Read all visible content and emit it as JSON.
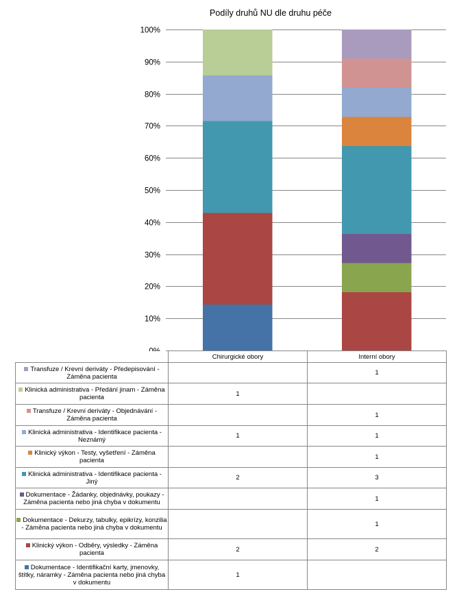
{
  "chart_data": {
    "type": "bar",
    "stacking": "percent",
    "title": "Podíly druhů NU dle druhu péče",
    "categories": [
      "Chirurgické obory",
      "Interní obory"
    ],
    "ylim": [
      0,
      100
    ],
    "y_ticks": [
      "0%",
      "10%",
      "20%",
      "30%",
      "40%",
      "50%",
      "60%",
      "70%",
      "80%",
      "90%",
      "100%"
    ],
    "grid": true,
    "legend_placement": "data-table",
    "series": [
      {
        "name": "Dokumentace - Identifikační karty, jmenovky, štítky, náramky - Záměna pacienta nebo jiná chyba v dokumentu",
        "values": [
          1,
          null
        ],
        "color": "#4572A7"
      },
      {
        "name": "Klinický výkon - Odběry, výsledky - Záměna pacienta",
        "values": [
          2,
          2
        ],
        "color": "#AA4643"
      },
      {
        "name": "Dokumentace - Dekurzy, tabulky, epikrízy, konzilia - Záměna pacienta nebo jiná chyba v dokumentu",
        "values": [
          null,
          1
        ],
        "color": "#89A54E"
      },
      {
        "name": "Dokumentace - Žádanky, objednávky, poukazy - Záměna pacienta nebo jiná chyba v dokumentu",
        "values": [
          null,
          1
        ],
        "color": "#71588F"
      },
      {
        "name": "Klinická administrativa - Identifikace pacienta - Jiný",
        "values": [
          2,
          3
        ],
        "color": "#4198AF"
      },
      {
        "name": "Klinický výkon - Testy, vyšetření - Záměna pacienta",
        "values": [
          null,
          1
        ],
        "color": "#DB843D"
      },
      {
        "name": "Klinická administrativa - Identifikace pacienta - Neznámý",
        "values": [
          1,
          1
        ],
        "color": "#93A9CF"
      },
      {
        "name": "Transfuze / Krevní deriváty - Objednávání - Záměna pacienta",
        "values": [
          null,
          1
        ],
        "color": "#D19392"
      },
      {
        "name": "Klinická administrativa - Předání jinam - Záměna pacienta",
        "values": [
          1,
          null
        ],
        "color": "#B9CD96"
      },
      {
        "name": "Transfuze / Krevní deriváty - Předepisování - Záměna pacienta",
        "values": [
          null,
          1
        ],
        "color": "#A99BBD"
      }
    ]
  }
}
